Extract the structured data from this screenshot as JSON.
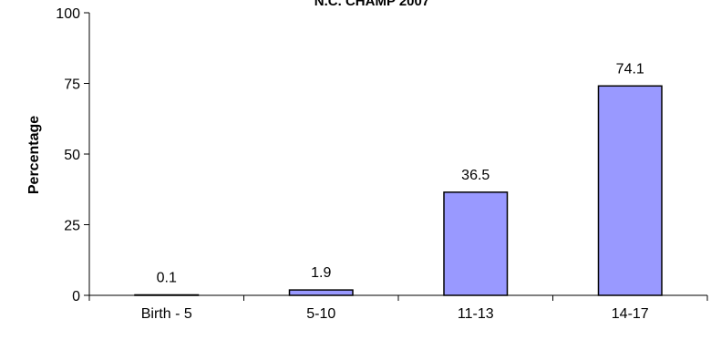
{
  "chart_data": {
    "type": "bar",
    "title": "N.C. CHAMP 2007",
    "ylabel": "Percentage",
    "xlabel": "",
    "categories": [
      "Birth - 5",
      "5-10",
      "11-13",
      "14-17"
    ],
    "values": [
      0.1,
      1.9,
      36.5,
      74.1
    ],
    "data_labels": [
      "0.1",
      "1.9",
      "36.5",
      "74.1"
    ],
    "ylim": [
      0,
      100
    ],
    "yticks": [
      0,
      25,
      50,
      75,
      100
    ],
    "ytick_labels": [
      "0",
      "25",
      "50",
      "75",
      "100"
    ],
    "bar_color": "#9999ff",
    "bar_edge_color": "#000000",
    "grid": false,
    "legend": false
  }
}
